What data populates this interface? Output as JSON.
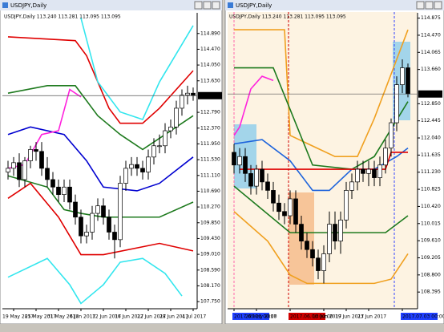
{
  "chart_data": [
    {
      "type": "candlestick",
      "window_title": "USDJPY,Daily",
      "subtitle": "USDJPY,Daily 113.240 113.281 113.095 113.095",
      "categories": [
        null,
        "19 May 2017",
        null,
        null,
        null,
        "25 May 2017",
        null,
        null,
        null,
        "31 May 2017",
        null,
        null,
        null,
        "6 Jun 2017",
        null,
        null,
        null,
        "12 Jun 2017",
        null,
        null,
        null,
        "16 Jun 2017",
        null,
        null,
        null,
        "22 Jun 2017",
        null,
        null,
        null,
        "28 Jun 2017",
        null,
        null,
        null,
        "4 Jul 2017"
      ],
      "open": [
        111.2,
        111.3,
        111.45,
        111.0,
        111.5,
        111.8,
        111.75,
        111.3,
        111.0,
        110.8,
        110.6,
        110.8,
        110.4,
        110.0,
        109.5,
        109.6,
        110.1,
        110.3,
        110.0,
        109.6,
        109.4,
        110.9,
        111.3,
        111.4,
        111.3,
        111.2,
        111.6,
        111.9,
        111.9,
        112.3,
        112.4,
        112.9,
        113.25,
        113.3
      ],
      "high": [
        111.5,
        111.6,
        111.7,
        111.6,
        111.9,
        112.0,
        112.0,
        111.6,
        111.2,
        111.0,
        111.0,
        111.0,
        110.6,
        110.2,
        109.8,
        110.3,
        110.5,
        110.5,
        110.2,
        109.8,
        111.1,
        111.5,
        111.6,
        111.6,
        111.5,
        111.8,
        112.1,
        112.2,
        112.5,
        112.6,
        113.1,
        113.4,
        113.5,
        113.45
      ],
      "low": [
        111.0,
        111.1,
        110.8,
        110.8,
        111.3,
        111.5,
        111.1,
        110.8,
        110.6,
        110.4,
        110.4,
        110.2,
        109.8,
        109.3,
        109.3,
        109.4,
        109.9,
        109.8,
        109.4,
        108.9,
        109.2,
        110.7,
        111.1,
        111.1,
        111.0,
        111.0,
        111.4,
        111.7,
        111.7,
        112.1,
        112.2,
        112.7,
        113.0,
        113.1
      ],
      "close": [
        111.3,
        111.45,
        111.0,
        111.5,
        111.8,
        111.75,
        111.3,
        111.0,
        110.8,
        110.6,
        110.8,
        110.4,
        110.0,
        109.5,
        109.6,
        110.1,
        110.3,
        110.0,
        109.6,
        109.4,
        110.9,
        111.3,
        111.4,
        111.3,
        111.2,
        111.6,
        111.9,
        111.9,
        112.3,
        112.4,
        112.9,
        113.25,
        113.3,
        113.235
      ],
      "lines": [
        {
          "color": "#e00000",
          "x": [
            0,
            12,
            14,
            18,
            20,
            24,
            27,
            33
          ],
          "values": [
            114.8,
            114.7,
            114.3,
            112.9,
            112.5,
            112.5,
            112.9,
            113.9
          ]
        },
        {
          "color": "#1e7a1e",
          "x": [
            0,
            7,
            12,
            16,
            20,
            24,
            27,
            33
          ],
          "values": [
            113.3,
            113.5,
            113.5,
            112.7,
            112.2,
            111.8,
            112.1,
            112.7
          ]
        },
        {
          "color": "#0000d0",
          "x": [
            0,
            4,
            10,
            14,
            17,
            23,
            27,
            33
          ],
          "values": [
            112.2,
            112.4,
            112.2,
            111.5,
            110.8,
            110.7,
            110.9,
            111.6
          ]
        },
        {
          "color": "#1e7a1e",
          "x": [
            0,
            7,
            10,
            13,
            17,
            27,
            33
          ],
          "values": [
            111.1,
            110.8,
            110.2,
            110.1,
            110.0,
            110.0,
            110.4
          ]
        },
        {
          "color": "#e00000",
          "x": [
            0,
            4,
            9,
            13,
            17,
            27,
            33
          ],
          "values": [
            110.5,
            110.9,
            110.0,
            109.0,
            109.0,
            109.3,
            109.1
          ]
        },
        {
          "color": "#33e6ee",
          "x": [
            13,
            16,
            20,
            24,
            27,
            33
          ],
          "values": [
            115.3,
            113.6,
            112.8,
            112.6,
            113.6,
            115.1
          ]
        },
        {
          "color": "#33e6ee",
          "x": [
            0,
            7,
            11,
            13,
            17,
            20,
            24,
            28,
            31
          ],
          "values": [
            108.4,
            108.9,
            108.2,
            107.7,
            108.2,
            108.8,
            108.9,
            108.5,
            107.9
          ]
        },
        {
          "color": "#ff22dd",
          "x": [
            0,
            3,
            6,
            9,
            11,
            13
          ],
          "values": [
            111.3,
            111.4,
            112.2,
            112.3,
            113.4,
            113.2
          ]
        }
      ],
      "price_label": {
        "value": 113.235,
        "label": "113.235"
      },
      "ylim": [
        107.56,
        115.44
      ],
      "yticks": [
        {
          "value": 107.75,
          "label": "107.750"
        },
        {
          "value": 108.17,
          "label": "108.170"
        },
        {
          "value": 108.59,
          "label": "108.590"
        },
        {
          "value": 109.01,
          "label": "109.010"
        },
        {
          "value": 109.43,
          "label": "109.430"
        },
        {
          "value": 109.85,
          "label": "109.850"
        },
        {
          "value": 110.27,
          "label": "110.270"
        },
        {
          "value": 110.69,
          "label": "110.690"
        },
        {
          "value": 111.11,
          "label": "111.110"
        },
        {
          "value": 111.53,
          "label": "111.530"
        },
        {
          "value": 111.95,
          "label": "111.950"
        },
        {
          "value": 112.37,
          "label": "112.370"
        },
        {
          "value": 112.79,
          "label": "112.790"
        },
        {
          "value": 113.63,
          "label": "113.630"
        },
        {
          "value": 114.05,
          "label": "114.050"
        },
        {
          "value": 114.47,
          "label": "114.470"
        },
        {
          "value": 114.89,
          "label": "114.890"
        }
      ]
    },
    {
      "type": "candlestick",
      "window_title": "USDJPY,Daily",
      "subtitle": "USDJPY,Daily 113.240 113.281 113.095 113.095",
      "categories": [
        "2017.05.23 00:00",
        null,
        null,
        null,
        "26 May 2017",
        null,
        null,
        null,
        null,
        null,
        "2017.06.06 00:00",
        null,
        null,
        null,
        null,
        null,
        "13 Jun 2017",
        null,
        null,
        null,
        "19 Jun 2017",
        null,
        null,
        null,
        "23 Jun 2017",
        null,
        null,
        null,
        null,
        null,
        "2017.07.03 00:00",
        null
      ],
      "open": [
        111.7,
        111.4,
        111.6,
        111.2,
        110.9,
        111.3,
        111.0,
        110.8,
        110.5,
        110.3,
        110.2,
        110.6,
        110.0,
        109.6,
        109.4,
        109.2,
        108.9,
        109.3,
        110.0,
        109.6,
        110.1,
        110.8,
        111.0,
        111.3,
        111.2,
        111.3,
        111.1,
        111.4,
        111.8,
        112.4,
        113.3,
        113.7
      ],
      "high": [
        111.9,
        111.8,
        111.8,
        111.4,
        111.4,
        111.5,
        111.2,
        111.0,
        110.7,
        110.5,
        110.8,
        110.8,
        110.2,
        109.8,
        109.6,
        109.4,
        109.5,
        110.3,
        110.3,
        110.3,
        111.0,
        111.2,
        111.5,
        111.5,
        111.5,
        111.5,
        111.6,
        112.0,
        112.5,
        113.5,
        113.9,
        113.8
      ],
      "low": [
        111.2,
        111.2,
        111.0,
        110.7,
        110.7,
        110.8,
        110.6,
        110.3,
        110.1,
        110.0,
        110.0,
        109.8,
        109.4,
        109.2,
        109.0,
        108.7,
        108.6,
        109.1,
        109.4,
        109.3,
        109.9,
        110.6,
        110.8,
        111.0,
        110.9,
        110.9,
        110.9,
        111.2,
        111.6,
        112.2,
        113.1,
        113.0
      ],
      "close": [
        111.4,
        111.6,
        111.2,
        110.9,
        111.3,
        111.0,
        110.8,
        110.5,
        110.3,
        110.2,
        110.6,
        110.0,
        109.6,
        109.4,
        109.2,
        108.9,
        109.3,
        110.0,
        109.6,
        110.1,
        110.8,
        111.0,
        111.3,
        111.2,
        111.3,
        111.1,
        111.4,
        111.8,
        112.4,
        113.3,
        113.7,
        113.08
      ],
      "lines": [
        {
          "color": "#f0a020",
          "x": [
            0,
            9,
            10,
            18,
            22,
            25,
            31
          ],
          "values": [
            114.6,
            114.6,
            112.1,
            111.6,
            111.6,
            112.5,
            114.6
          ]
        },
        {
          "color": "#f0a020",
          "x": [
            0,
            6,
            10,
            13,
            25,
            28,
            31
          ],
          "values": [
            110.3,
            109.6,
            108.8,
            108.6,
            108.6,
            108.7,
            109.3
          ]
        },
        {
          "color": "#1e7a1e",
          "x": [
            0,
            7,
            14,
            21,
            25,
            31
          ],
          "values": [
            113.7,
            113.7,
            111.4,
            111.3,
            111.6,
            112.9
          ]
        },
        {
          "color": "#1e7a1e",
          "x": [
            0,
            10,
            16,
            27,
            31
          ],
          "values": [
            110.9,
            109.8,
            109.8,
            109.8,
            110.2
          ]
        },
        {
          "color": "#1e64dc",
          "x": [
            0,
            5,
            10,
            14,
            17,
            21,
            25,
            29,
            31
          ],
          "values": [
            111.9,
            112.0,
            111.5,
            110.8,
            110.8,
            111.3,
            111.3,
            111.6,
            111.8
          ]
        },
        {
          "color": "#e00000",
          "x": [
            1,
            27,
            28,
            31
          ],
          "values": [
            111.3,
            111.3,
            111.7,
            111.7
          ]
        },
        {
          "color": "#ff22dd",
          "x": [
            0,
            1,
            3,
            5,
            7
          ],
          "values": [
            112.1,
            112.3,
            113.2,
            113.5,
            113.4
          ]
        }
      ],
      "price_label": {
        "value": 113.08,
        "label": "113.080"
      },
      "ylim": [
        108.0,
        115.0
      ],
      "yticks": [
        {
          "value": 108.395,
          "label": "108.395"
        },
        {
          "value": 108.8,
          "label": "108.800"
        },
        {
          "value": 109.205,
          "label": "109.205"
        },
        {
          "value": 109.61,
          "label": "109.610"
        },
        {
          "value": 110.015,
          "label": "110.015"
        },
        {
          "value": 110.42,
          "label": "110.420"
        },
        {
          "value": 110.825,
          "label": "110.825"
        },
        {
          "value": 111.23,
          "label": "111.230"
        },
        {
          "value": 111.635,
          "label": "111.635"
        },
        {
          "value": 112.04,
          "label": "112.040"
        },
        {
          "value": 112.445,
          "label": "112.445"
        },
        {
          "value": 112.85,
          "label": "112.850"
        },
        {
          "value": 113.66,
          "label": "113.660"
        },
        {
          "value": 114.065,
          "label": "114.065"
        },
        {
          "value": 114.47,
          "label": "114.470"
        },
        {
          "value": 114.875,
          "label": "114.875"
        }
      ]
    }
  ]
}
